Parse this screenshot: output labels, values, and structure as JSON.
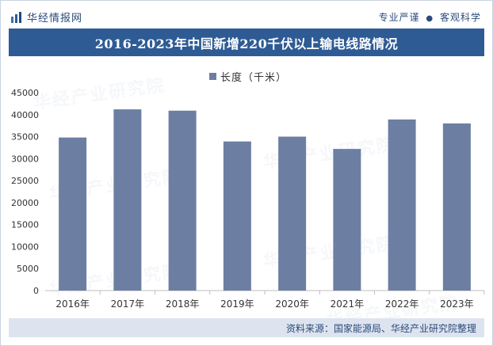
{
  "header": {
    "brand_name": "华经情报网",
    "slogan_left": "专业严谨",
    "slogan_dot": "●",
    "slogan_right": "客观科学"
  },
  "watermark": "华经产业研究院",
  "colors": {
    "bar": "#6c7fa3",
    "title_bg": "#2e5b94",
    "footer_bg": "#dde4ef",
    "text_blue": "#2b4a7a"
  },
  "chart_data": {
    "type": "bar",
    "title": "2016-2023年中国新增220千伏以上输电线路情况",
    "legend": [
      "长度（千米）"
    ],
    "categories": [
      "2016年",
      "2017年",
      "2018年",
      "2019年",
      "2020年",
      "2021年",
      "2022年",
      "2023年"
    ],
    "series": [
      {
        "name": "长度（千米）",
        "values": [
          34800,
          41200,
          40900,
          33900,
          35000,
          32200,
          38900,
          38000
        ]
      }
    ],
    "xlabel": "",
    "ylabel": "",
    "ylim": [
      0,
      45000
    ],
    "yticks": [
      0,
      5000,
      10000,
      15000,
      20000,
      25000,
      30000,
      35000,
      40000,
      45000
    ],
    "grid": false
  },
  "footer": {
    "source": "资料来源：国家能源局、华经产业研究院整理"
  }
}
